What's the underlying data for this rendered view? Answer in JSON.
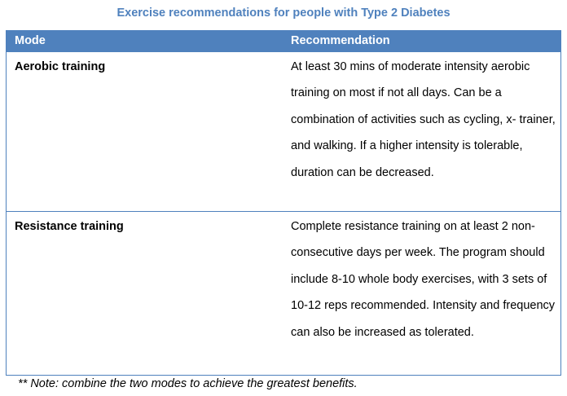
{
  "caption": "Exercise recommendations for people with Type 2 Diabetes",
  "colors": {
    "accent": "#4f81bd",
    "header_text": "#ffffff"
  },
  "table": {
    "headers": {
      "mode": "Mode",
      "recommendation": "Recommendation"
    },
    "rows": [
      {
        "mode": "Aerobic training",
        "recommendation": "At least 30 mins of moderate intensity aerobic training on most if not all days.  Can be a combination of activities such as cycling, x- trainer, and walking. If a higher intensity is tolerable, duration can be decreased."
      },
      {
        "mode": "Resistance training",
        "recommendation": "Complete resistance training on at least 2 non- consecutive days per week. The program should include 8-10 whole body exercises, with 3 sets of 10-12 reps recommended. Intensity and frequency can also be increased as tolerated."
      }
    ]
  },
  "footnote": "** Note: combine the two modes to achieve the greatest benefits."
}
